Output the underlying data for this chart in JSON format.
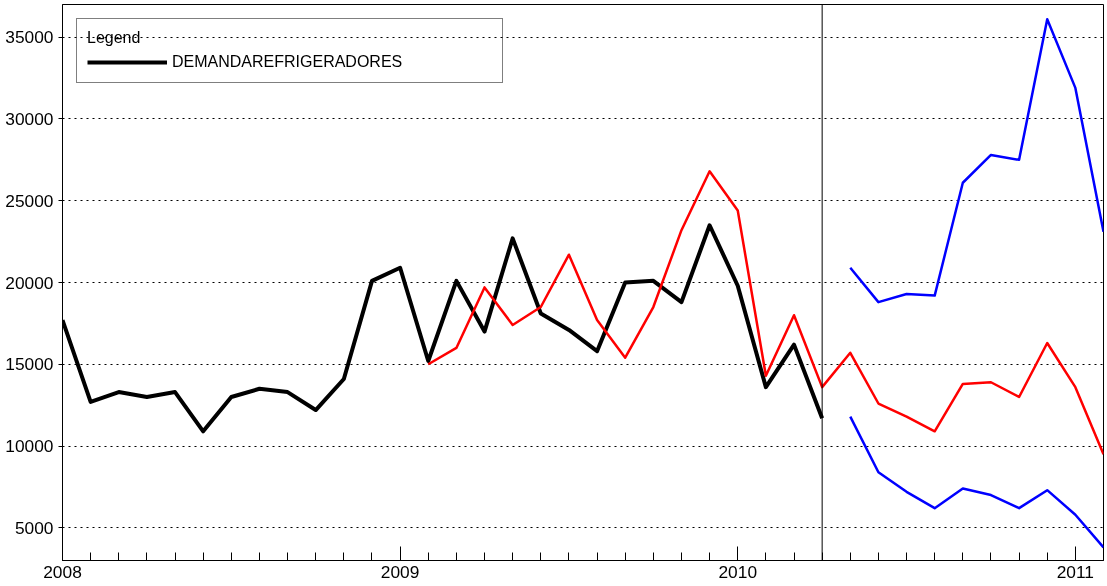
{
  "chart_data": {
    "type": "line",
    "legend_title": "Legend",
    "x": [
      "2008-01",
      "2008-02",
      "2008-03",
      "2008-04",
      "2008-05",
      "2008-06",
      "2008-07",
      "2008-08",
      "2008-09",
      "2008-10",
      "2008-11",
      "2008-12",
      "2009-01",
      "2009-02",
      "2009-03",
      "2009-04",
      "2009-05",
      "2009-06",
      "2009-07",
      "2009-08",
      "2009-09",
      "2009-10",
      "2009-11",
      "2009-12",
      "2010-01",
      "2010-02",
      "2010-03",
      "2010-04"
    ],
    "series": [
      {
        "name": "DEMANDAREFRIGERADORES",
        "color": "#000000",
        "values": [
          17700,
          12700,
          13300,
          13000,
          13300,
          10900,
          13000,
          13500,
          13300,
          12200,
          14100,
          20100,
          20900,
          15200,
          20100,
          17000,
          22700,
          18100,
          17100,
          15800,
          20000,
          20100,
          18800,
          23500,
          19800,
          13600,
          16200,
          11700
        ]
      },
      {
        "color": "#ff0000",
        "x": [
          "2009-02",
          "2009-03",
          "2009-04",
          "2009-05",
          "2009-06",
          "2009-07",
          "2009-08",
          "2009-09",
          "2009-10",
          "2009-11",
          "2009-12",
          "2010-01",
          "2010-02",
          "2010-03",
          "2010-04",
          "2010-05",
          "2010-06",
          "2010-07",
          "2010-08",
          "2010-09",
          "2010-10",
          "2010-11",
          "2010-12",
          "2011-01",
          "2011-02"
        ],
        "values": [
          15000,
          16000,
          19700,
          17400,
          18500,
          21700,
          17700,
          15400,
          18500,
          23200,
          26800,
          24400,
          14300,
          18000,
          13600,
          15700,
          12600,
          11800,
          10900,
          13800,
          13900,
          13000,
          16300,
          13600,
          9500
        ]
      },
      {
        "color": "#0000ff",
        "x": [
          "2010-05",
          "2010-06",
          "2010-07",
          "2010-08",
          "2010-09",
          "2010-10",
          "2010-11",
          "2010-12",
          "2011-01",
          "2011-02"
        ],
        "values": [
          20900,
          18800,
          19300,
          19200,
          26100,
          27800,
          27500,
          36100,
          31900,
          23100
        ]
      },
      {
        "color": "#0000ff",
        "x": [
          "2010-05",
          "2010-06",
          "2010-07",
          "2010-08",
          "2010-09",
          "2010-10",
          "2010-11",
          "2010-12",
          "2011-01",
          "2011-02"
        ],
        "values": [
          11800,
          8400,
          7200,
          6200,
          7400,
          7000,
          6200,
          7300,
          5800,
          3800
        ]
      }
    ],
    "xlim": [
      "2008-01",
      "2011-02"
    ],
    "xticks": [
      {
        "value": "2008-01",
        "label": "2008"
      },
      {
        "value": "2009-01",
        "label": "2009"
      },
      {
        "value": "2010-01",
        "label": "2010"
      },
      {
        "value": "2011-01",
        "label": "2011"
      }
    ],
    "ylim": [
      3000,
      37000
    ],
    "yticks": [
      5000,
      10000,
      15000,
      20000,
      25000,
      30000,
      35000
    ],
    "ref_lines": [
      {
        "axis": "x",
        "value": "2010-04",
        "color": "#000000"
      }
    ],
    "grid": "y",
    "legend": "top left",
    "line_style": "solid",
    "marker": "none"
  }
}
